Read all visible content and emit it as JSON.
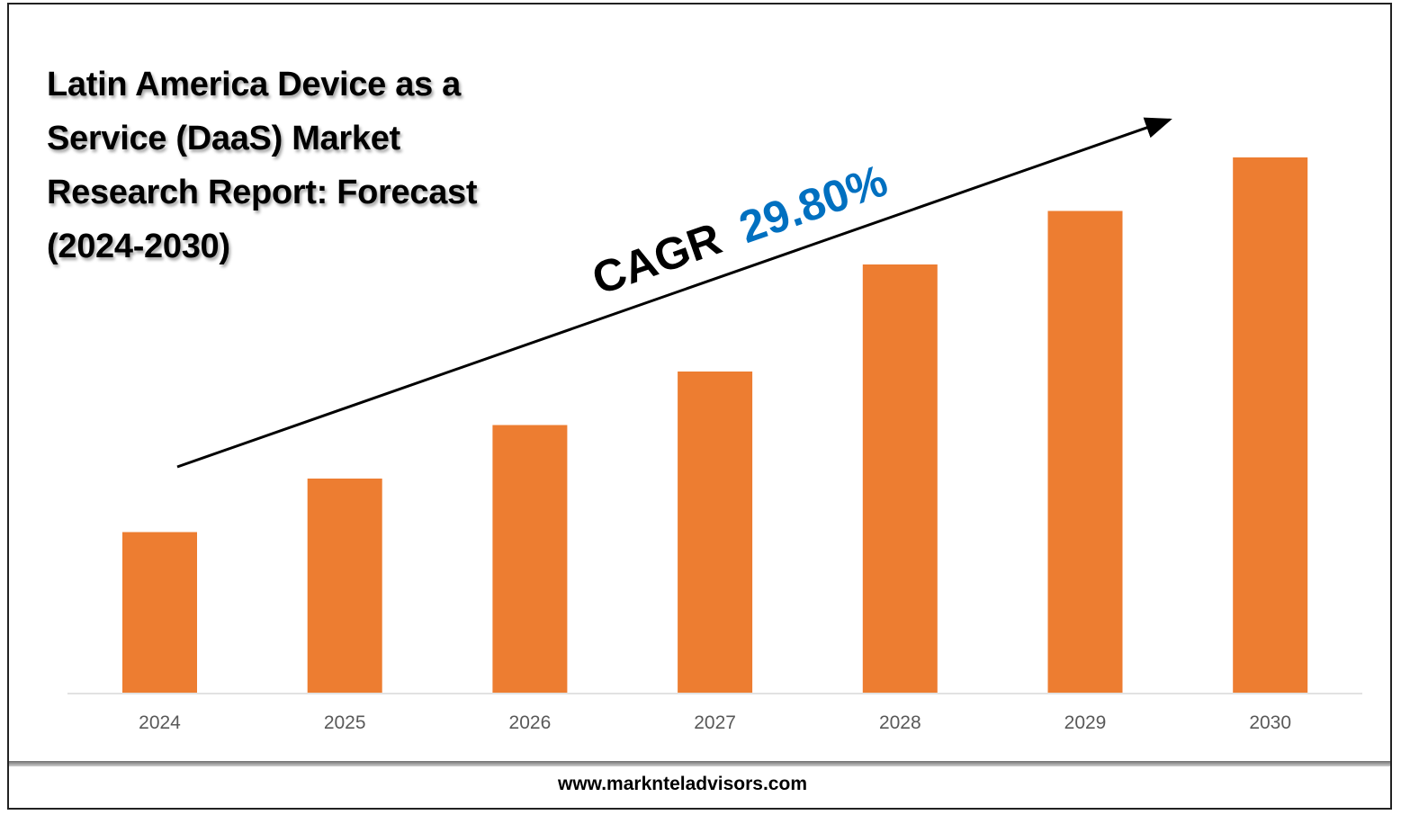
{
  "title": "Latin America Device as a Service (DaaS) Market Research Report: Forecast (2024-2030)",
  "annotation": {
    "cagr_label": "CAGR",
    "cagr_value": "29.80%"
  },
  "footer": {
    "url": "www.marknteladvisors.com"
  },
  "colors": {
    "bar": "#ED7D31",
    "cagr_value": "#0070C0",
    "axis": "#d9d9d9",
    "tick_text": "#595959"
  },
  "chart_data": {
    "type": "bar",
    "title": "Latin America Device as a Service (DaaS) Market Research Report: Forecast (2024-2030)",
    "categories": [
      "2024",
      "2025",
      "2026",
      "2027",
      "2028",
      "2029",
      "2030"
    ],
    "values": [
      30,
      40,
      50,
      60,
      80,
      90,
      100
    ],
    "value_scale": "relative (no y-axis printed)",
    "ylim": [
      0,
      100
    ],
    "grid": false,
    "legend": "none"
  }
}
